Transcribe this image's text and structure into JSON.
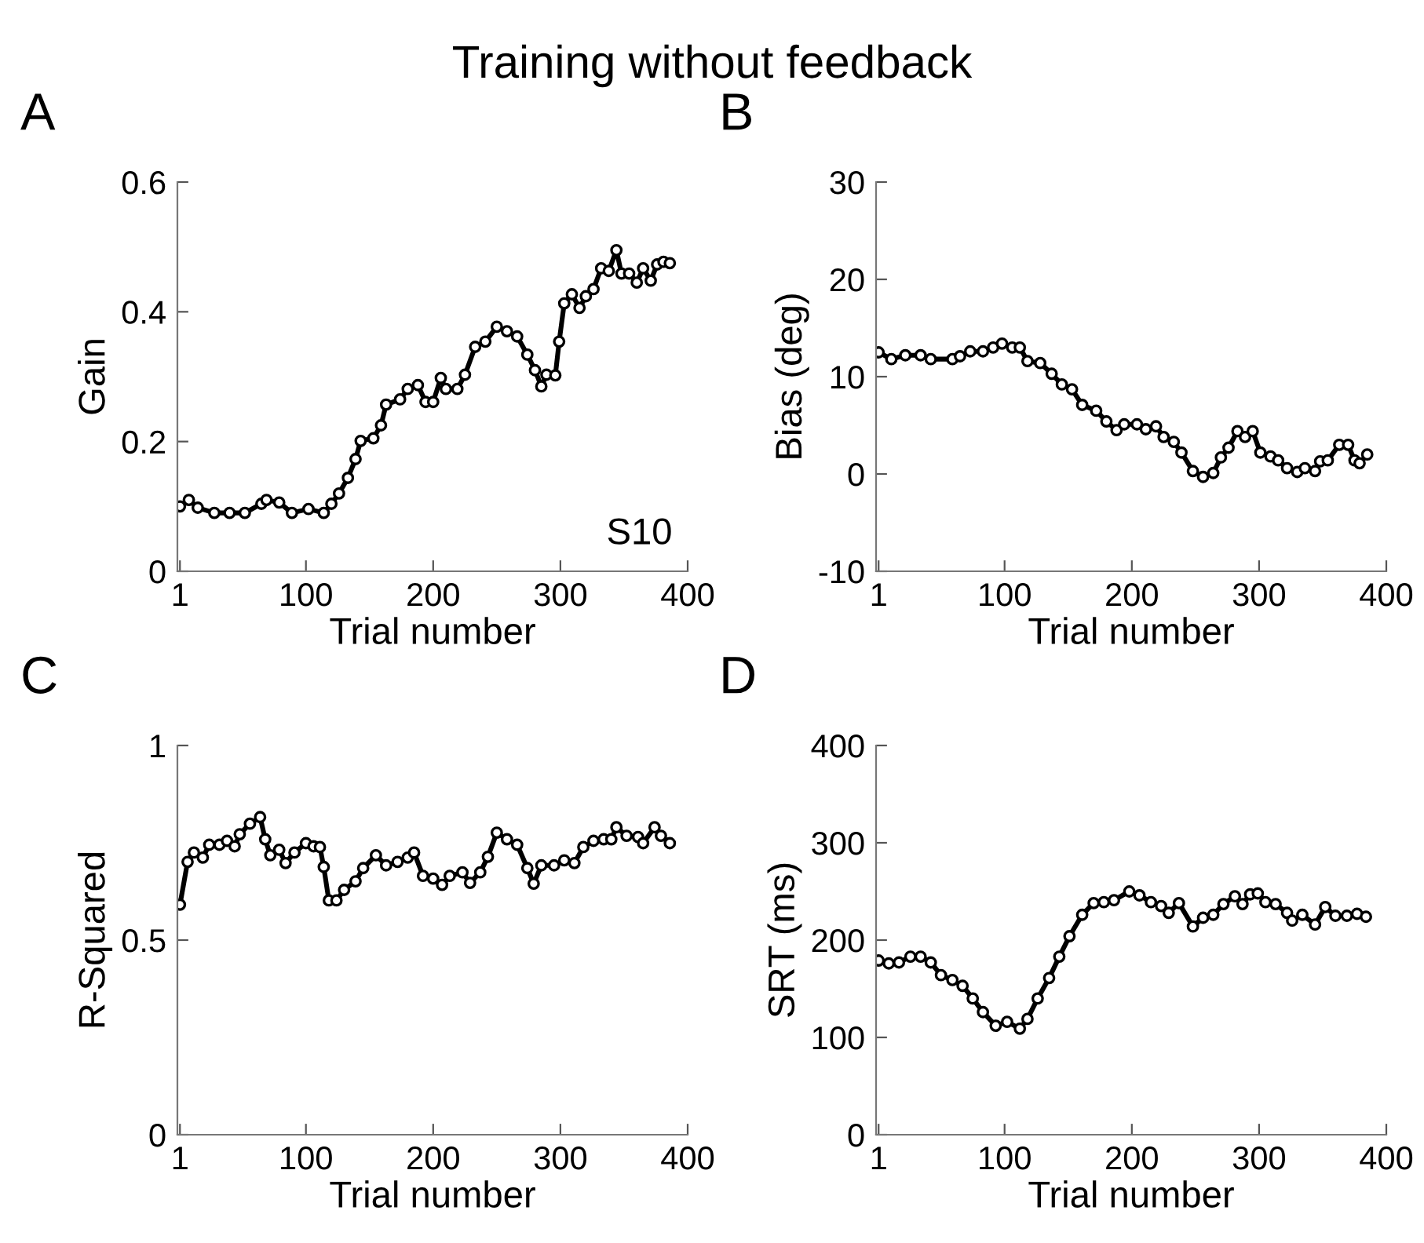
{
  "chart_data": [
    {
      "type": "line",
      "title": "Training without feedback",
      "ylabel": "Gain",
      "xlabel": "Trial number",
      "annotations": [
        "A",
        "S10"
      ],
      "marker": "circle",
      "line_style": "solid",
      "grid": false,
      "legend": false,
      "xlim": [
        -1,
        400
      ],
      "xticks": [
        1,
        100,
        200,
        300,
        400
      ],
      "ylim": [
        0,
        0.6
      ],
      "yticks": [
        0,
        0.2,
        0.4,
        0.6
      ],
      "x": [
        1,
        8,
        15,
        28,
        40,
        52,
        65,
        69,
        79,
        89,
        102,
        114,
        120,
        126,
        133,
        139,
        143,
        153,
        159,
        163,
        174,
        180,
        188,
        194,
        200,
        206,
        210,
        219,
        225,
        233,
        241,
        250,
        258,
        266,
        274,
        280,
        285,
        289,
        296,
        299,
        303,
        309,
        315,
        320,
        326,
        332,
        338,
        344,
        348,
        354,
        360,
        365,
        371,
        376,
        381,
        386
      ],
      "series": [
        {
          "color": "#000000",
          "values": [
            0.1,
            0.11,
            0.098,
            0.09,
            0.09,
            0.09,
            0.104,
            0.11,
            0.106,
            0.09,
            0.096,
            0.09,
            0.104,
            0.12,
            0.144,
            0.173,
            0.201,
            0.205,
            0.225,
            0.257,
            0.265,
            0.281,
            0.287,
            0.261,
            0.261,
            0.298,
            0.281,
            0.281,
            0.303,
            0.346,
            0.354,
            0.377,
            0.37,
            0.362,
            0.334,
            0.31,
            0.285,
            0.303,
            0.302,
            0.354,
            0.413,
            0.427,
            0.406,
            0.424,
            0.435,
            0.467,
            0.463,
            0.495,
            0.459,
            0.459,
            0.445,
            0.467,
            0.448,
            0.473,
            0.477,
            0.475
          ]
        }
      ]
    },
    {
      "type": "line",
      "ylabel": "Bias (deg)",
      "xlabel": "Trial number",
      "annotations": [
        "B"
      ],
      "marker": "circle",
      "line_style": "solid",
      "grid": false,
      "legend": false,
      "xlim": [
        -1,
        400
      ],
      "xticks": [
        1,
        100,
        200,
        300,
        400
      ],
      "ylim": [
        -10,
        30
      ],
      "yticks": [
        {
          "value": -10,
          "label": "-10"
        },
        0,
        10,
        20,
        30
      ],
      "x": [
        1,
        11,
        22,
        34,
        42,
        59,
        65,
        73,
        83,
        91,
        98,
        106,
        112,
        118,
        128,
        137,
        145,
        153,
        161,
        172,
        180,
        188,
        194,
        204,
        211,
        219,
        225,
        233,
        239,
        248,
        256,
        264,
        270,
        276,
        283,
        289,
        295,
        301,
        309,
        315,
        322,
        330,
        336,
        344,
        348,
        354,
        363,
        370,
        375,
        379,
        385
      ],
      "series": [
        {
          "color": "#000000",
          "values": [
            12.5,
            11.8,
            12.2,
            12.2,
            11.8,
            11.8,
            12.1,
            12.6,
            12.6,
            13.0,
            13.4,
            13.0,
            13.0,
            11.6,
            11.4,
            10.3,
            9.2,
            8.7,
            7.1,
            6.5,
            5.4,
            4.5,
            5.1,
            5.1,
            4.6,
            4.9,
            3.8,
            3.3,
            2.2,
            0.3,
            -0.3,
            0.1,
            1.7,
            2.7,
            4.4,
            3.8,
            4.4,
            2.2,
            1.8,
            1.4,
            0.6,
            0.2,
            0.6,
            0.3,
            1.3,
            1.4,
            3.0,
            3.0,
            1.4,
            1.1,
            2.0
          ]
        }
      ]
    },
    {
      "type": "line",
      "ylabel": "R-Squared",
      "xlabel": "Trial number",
      "annotations": [
        "C"
      ],
      "marker": "circle",
      "line_style": "solid",
      "grid": false,
      "legend": false,
      "xlim": [
        -1,
        400
      ],
      "xticks": [
        1,
        100,
        200,
        300,
        400
      ],
      "ylim": [
        0,
        1
      ],
      "yticks": [
        0,
        0.5,
        1
      ],
      "x": [
        1,
        7,
        12,
        19,
        24,
        32,
        38,
        44,
        48,
        56,
        64,
        68,
        72,
        79,
        84,
        91,
        100,
        106,
        111,
        114,
        118,
        124,
        130,
        139,
        145,
        155,
        163,
        172,
        180,
        185,
        192,
        200,
        207,
        213,
        223,
        229,
        237,
        243,
        250,
        258,
        266,
        274,
        279,
        285,
        295,
        303,
        311,
        318,
        326,
        334,
        340,
        344,
        352,
        361,
        365,
        374,
        379,
        386
      ],
      "series": [
        {
          "color": "#000000",
          "values": [
            0.591,
            0.701,
            0.725,
            0.712,
            0.745,
            0.745,
            0.755,
            0.741,
            0.772,
            0.799,
            0.816,
            0.759,
            0.718,
            0.732,
            0.698,
            0.725,
            0.749,
            0.741,
            0.739,
            0.688,
            0.602,
            0.602,
            0.629,
            0.651,
            0.685,
            0.718,
            0.692,
            0.701,
            0.712,
            0.725,
            0.665,
            0.658,
            0.642,
            0.665,
            0.674,
            0.647,
            0.674,
            0.714,
            0.776,
            0.759,
            0.745,
            0.685,
            0.645,
            0.692,
            0.692,
            0.705,
            0.698,
            0.739,
            0.755,
            0.759,
            0.759,
            0.79,
            0.768,
            0.765,
            0.749,
            0.79,
            0.768,
            0.749
          ]
        }
      ]
    },
    {
      "type": "line",
      "ylabel": "SRT (ms)",
      "xlabel": "Trial number",
      "annotations": [
        "D"
      ],
      "marker": "circle",
      "line_style": "solid",
      "grid": false,
      "legend": false,
      "xlim": [
        -1,
        400
      ],
      "xticks": [
        1,
        100,
        200,
        300,
        400
      ],
      "ylim": [
        0,
        400
      ],
      "yticks": [
        0,
        100,
        200,
        300,
        400
      ],
      "x": [
        1,
        9,
        17,
        26,
        34,
        42,
        50,
        59,
        67,
        75,
        83,
        93,
        102,
        112,
        118,
        126,
        135,
        143,
        151,
        161,
        170,
        178,
        186,
        198,
        206,
        215,
        223,
        229,
        237,
        248,
        256,
        264,
        272,
        281,
        287,
        293,
        299,
        305,
        313,
        322,
        326,
        334,
        344,
        352,
        360,
        369,
        377,
        384
      ],
      "series": [
        {
          "color": "#000000",
          "values": [
            179,
            176,
            177,
            183,
            183,
            177,
            164,
            159,
            153,
            140,
            126,
            112,
            116,
            109,
            119,
            140,
            161,
            183,
            204,
            226,
            238,
            239,
            241,
            250,
            246,
            239,
            235,
            228,
            238,
            214,
            223,
            226,
            237,
            245,
            237,
            247,
            248,
            239,
            237,
            228,
            220,
            226,
            216,
            234,
            225,
            225,
            227,
            224
          ]
        }
      ]
    }
  ]
}
